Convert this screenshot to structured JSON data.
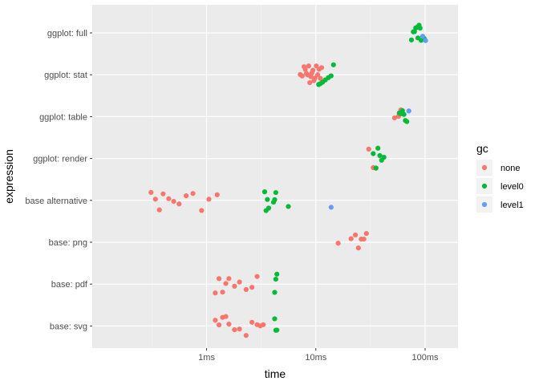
{
  "chart_data": {
    "type": "scatter",
    "style": "beeswarm",
    "xlabel": "time",
    "ylabel": "expression",
    "x_scale": "log10",
    "x_unit": "seconds",
    "xlim": [
      8.98e-05,
      0.2
    ],
    "x_ticks": [
      {
        "value": 0.001,
        "label": "1ms"
      },
      {
        "value": 0.01,
        "label": "10ms"
      },
      {
        "value": 0.1,
        "label": "100ms"
      }
    ],
    "grid": true,
    "categories": [
      "ggplot: full",
      "ggplot: stat",
      "ggplot: table",
      "ggplot: render",
      "base alternative",
      "base: png",
      "base: pdf",
      "base: svg"
    ],
    "legend": {
      "title": "gc",
      "position": "right",
      "entries": [
        {
          "name": "none",
          "color": "#F8766D"
        },
        {
          "name": "level0",
          "color": "#00BA38"
        },
        {
          "name": "level1",
          "color": "#619CFF"
        }
      ]
    },
    "series": [
      {
        "name": "none",
        "color": "#F8766D",
        "points": [
          {
            "category": "ggplot: stat",
            "x": [
              0.0072,
              0.0075,
              0.0078,
              0.008,
              0.0082,
              0.0084,
              0.0086,
              0.0088,
              0.009,
              0.0092,
              0.0094,
              0.0096,
              0.0098,
              0.0101,
              0.0104,
              0.0107,
              0.011,
              0.0113
            ]
          },
          {
            "category": "ggplot: table",
            "x": [
              0.0525,
              0.057,
              0.06
            ]
          },
          {
            "category": "ggplot: render",
            "x": [
              0.0305,
              0.0335,
              0.0355
            ]
          },
          {
            "category": "base alternative",
            "x": [
              0.00031,
              0.00034,
              0.00037,
              0.0004,
              0.00045,
              0.0005,
              0.00056,
              0.00065,
              0.00075,
              0.0009,
              0.00105,
              0.00125
            ]
          },
          {
            "category": "base: png",
            "x": [
              0.016,
              0.021,
              0.023,
              0.0245,
              0.026,
              0.0275,
              0.029
            ]
          },
          {
            "category": "base: pdf",
            "x": [
              0.0012,
              0.0013,
              0.0014,
              0.0015,
              0.0016,
              0.0018,
              0.002,
              0.0023,
              0.0026,
              0.0029
            ]
          },
          {
            "category": "base: svg",
            "x": [
              0.0012,
              0.0013,
              0.0014,
              0.0015,
              0.0016,
              0.0018,
              0.002,
              0.0023,
              0.0026,
              0.0029,
              0.0031,
              0.0033
            ]
          }
        ]
      },
      {
        "name": "level0",
        "color": "#00BA38",
        "points": [
          {
            "category": "ggplot: full",
            "x": [
              0.075,
              0.078,
              0.08,
              0.082,
              0.084,
              0.086,
              0.088,
              0.09,
              0.098,
              0.092
            ]
          },
          {
            "category": "ggplot: stat",
            "x": [
              0.0106,
              0.011,
              0.0115,
              0.0122,
              0.013,
              0.0138,
              0.0145
            ]
          },
          {
            "category": "ggplot: table",
            "x": [
              0.058,
              0.06,
              0.062,
              0.064,
              0.066,
              0.068
            ]
          },
          {
            "category": "ggplot: render",
            "x": [
              0.0335,
              0.0355,
              0.037,
              0.0385,
              0.04,
              0.042
            ]
          },
          {
            "category": "base alternative",
            "x": [
              0.0034,
              0.0035,
              0.0036,
              0.0037,
              0.0041,
              0.0042,
              0.0043,
              0.0056
            ]
          },
          {
            "category": "base: pdf",
            "x": [
              0.0042,
              0.0043,
              0.0044
            ]
          },
          {
            "category": "base: svg",
            "x": [
              0.0042,
              0.0043,
              0.0044
            ]
          }
        ]
      },
      {
        "name": "level1",
        "color": "#619CFF",
        "points": [
          {
            "category": "ggplot: full",
            "x": [
              0.095,
              0.101
            ]
          },
          {
            "category": "ggplot: table",
            "x": [
              0.071
            ]
          },
          {
            "category": "base alternative",
            "x": [
              0.0138
            ]
          }
        ]
      }
    ]
  }
}
